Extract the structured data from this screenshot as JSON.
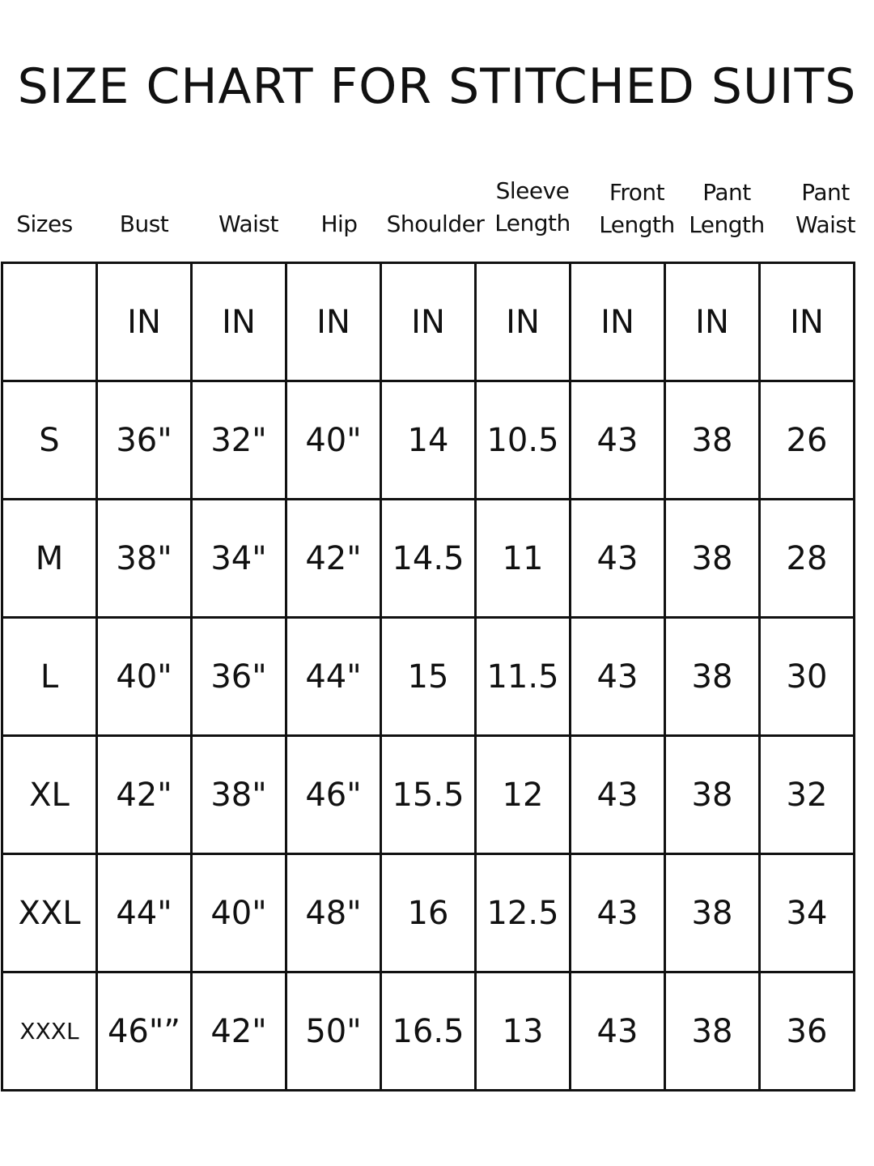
{
  "title": "SIZE CHART FOR STITCHED SUITS",
  "headers": [
    {
      "line1": "",
      "line2": "Sizes"
    },
    {
      "line1": "",
      "line2": "Bust"
    },
    {
      "line1": "",
      "line2": "Waist"
    },
    {
      "line1": "",
      "line2": "Hip"
    },
    {
      "line1": "",
      "line2": "Shoulder"
    },
    {
      "line1": "Sleeve",
      "line2": "Length"
    },
    {
      "line1": "Front",
      "line2": "Length"
    },
    {
      "line1": "Pant",
      "line2": "Length"
    },
    {
      "line1": "Pant",
      "line2": "Waist"
    }
  ],
  "rows": [
    [
      "",
      "IN",
      "IN",
      "IN",
      "IN",
      "IN",
      "IN",
      "IN",
      "IN"
    ],
    [
      "S",
      "36\"",
      "32\"",
      "40\"",
      "14",
      "10.5",
      "43",
      "38",
      "26"
    ],
    [
      "M",
      "38\"",
      "34\"",
      "42\"",
      "14.5",
      "11",
      "43",
      "38",
      "28"
    ],
    [
      "L",
      "40\"",
      "36\"",
      "44\"",
      "15",
      "11.5",
      "43",
      "38",
      "30"
    ],
    [
      "XL",
      "42\"",
      "38\"",
      "46\"",
      "15.5",
      "12",
      "43",
      "38",
      "32"
    ],
    [
      "XXL",
      "44\"",
      "40\"",
      "48\"",
      "16",
      "12.5",
      "43",
      "38",
      "34"
    ],
    [
      "XXXL",
      "46\"”",
      "42\"",
      "50\"",
      "16.5",
      "13",
      "43",
      "38",
      "36"
    ]
  ]
}
